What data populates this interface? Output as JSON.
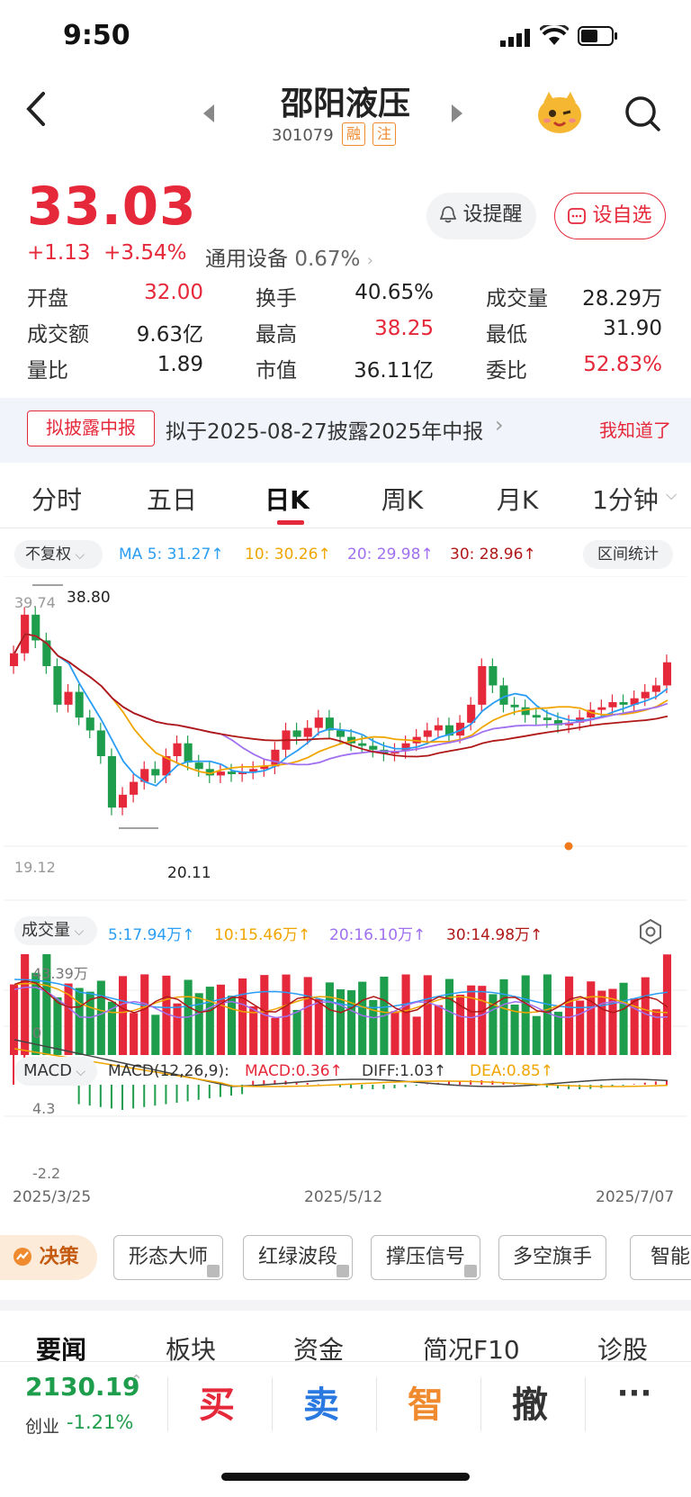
{
  "status_bar": {
    "time": "9:50"
  },
  "header": {
    "name": "邵阳液压",
    "code": "301079",
    "tag_margin": "融",
    "tag_note": "注"
  },
  "quote": {
    "price": "33.03",
    "change": "+1.13",
    "change_pct": "+3.54%",
    "sector_name": "通用设备",
    "sector_pct": "0.67%",
    "remind_label": "设提醒",
    "watch_label": "设自选"
  },
  "stats": [
    {
      "label": "开盘",
      "value": "32.00",
      "color": "red"
    },
    {
      "label": "换手",
      "value": "40.65%",
      "color": "black"
    },
    {
      "label": "成交量",
      "value": "28.29万",
      "color": "black"
    },
    {
      "label": "成交额",
      "value": "9.63亿",
      "color": "black"
    },
    {
      "label": "最高",
      "value": "38.25",
      "color": "red"
    },
    {
      "label": "最低",
      "value": "31.90",
      "color": "black"
    },
    {
      "label": "量比",
      "value": "1.89",
      "color": "black"
    },
    {
      "label": "市值",
      "value": "36.11亿",
      "color": "black"
    },
    {
      "label": "委比",
      "value": "52.83%",
      "color": "red"
    }
  ],
  "notice": {
    "tag": "拟披露中报",
    "text": "拟于2025-08-27披露2025年中报",
    "dismiss": "我知道了"
  },
  "kline_tabs": [
    "分时",
    "五日",
    "日K",
    "周K",
    "月K",
    "1分钟"
  ],
  "active_tab": "日K",
  "ma_bar": {
    "adjust": "不复权",
    "ma5": "MA 5: 31.27",
    "ma10": "10: 30.26",
    "ma20": "20: 29.98",
    "ma30": "30: 28.96",
    "range_stats": "区间统计"
  },
  "price_chart": {
    "high_label": "38.80",
    "top_label": "39.74",
    "low_label": "20.11",
    "bottom_label": "19.12"
  },
  "volume_bar": {
    "title": "成交量",
    "v5": "5:17.94万",
    "v10": "10:15.46万",
    "v20": "20:16.10万",
    "v30": "30:14.98万",
    "top_label": "43.39万",
    "zero_label": "0"
  },
  "macd_bar": {
    "title": "MACD",
    "params": "MACD(12,26,9):",
    "macd": "MACD:0.36",
    "diff": "DIFF:1.03",
    "dea": "DEA:0.85",
    "top_label": "4.3",
    "bottom_label": "-2.2"
  },
  "dates": [
    "2025/3/25",
    "2025/5/12",
    "2025/7/07"
  ],
  "decision": {
    "label": "决策",
    "chips": [
      "形态大师",
      "红绿波段",
      "撑压信号",
      "多空旗手",
      "智能"
    ]
  },
  "bottom_tabs": [
    "要闻",
    "板块",
    "资金",
    "简况F10",
    "诊股"
  ],
  "index": {
    "value": "2130.19",
    "name": "创业",
    "pct": "-1.21%"
  },
  "actions": {
    "buy": "买",
    "sell": "卖",
    "smart": "智",
    "cancel": "撤",
    "more": "···"
  },
  "colors": {
    "up": "#e5283a",
    "down": "#1e9e4c",
    "ma5": "#2a9df4",
    "ma10": "#f0a500",
    "ma20": "#a070f0",
    "ma30": "#b01818"
  }
}
